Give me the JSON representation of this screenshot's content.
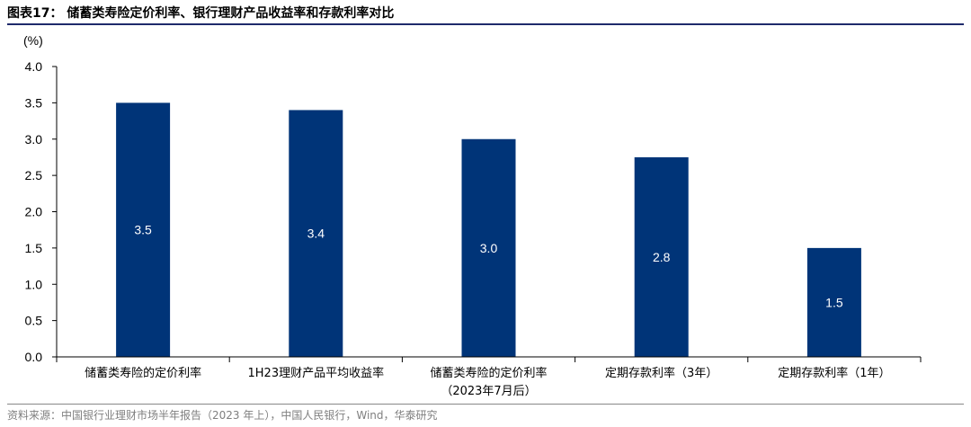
{
  "figure": {
    "title": "图表17：  储蓄类寿险定价利率、银行理财产品收益率和存款利率对比",
    "source": "资料来源：中国银行业理财市场半年报告（2023 年上），中国人民银行，Wind，华泰研究"
  },
  "chart_data": {
    "type": "bar",
    "unit_label": "(%)",
    "categories": [
      [
        "储蓄类寿险的定价利率"
      ],
      [
        "1H23理财产品平均收益率"
      ],
      [
        "储蓄类寿险的定价利率",
        "（2023年7月后）"
      ],
      [
        "定期存款利率（3年）"
      ],
      [
        "定期存款利率（1年）"
      ]
    ],
    "values": [
      3.5,
      3.4,
      3.0,
      2.75,
      1.5
    ],
    "data_labels": [
      "3.5",
      "3.4",
      "3.0",
      "2.8",
      "1.5"
    ],
    "ylim": [
      0,
      4.0
    ],
    "yticks": [
      "0.0",
      "0.5",
      "1.0",
      "1.5",
      "2.0",
      "2.5",
      "3.0",
      "3.5",
      "4.0"
    ],
    "grid": false,
    "bar_color": "#003478"
  }
}
